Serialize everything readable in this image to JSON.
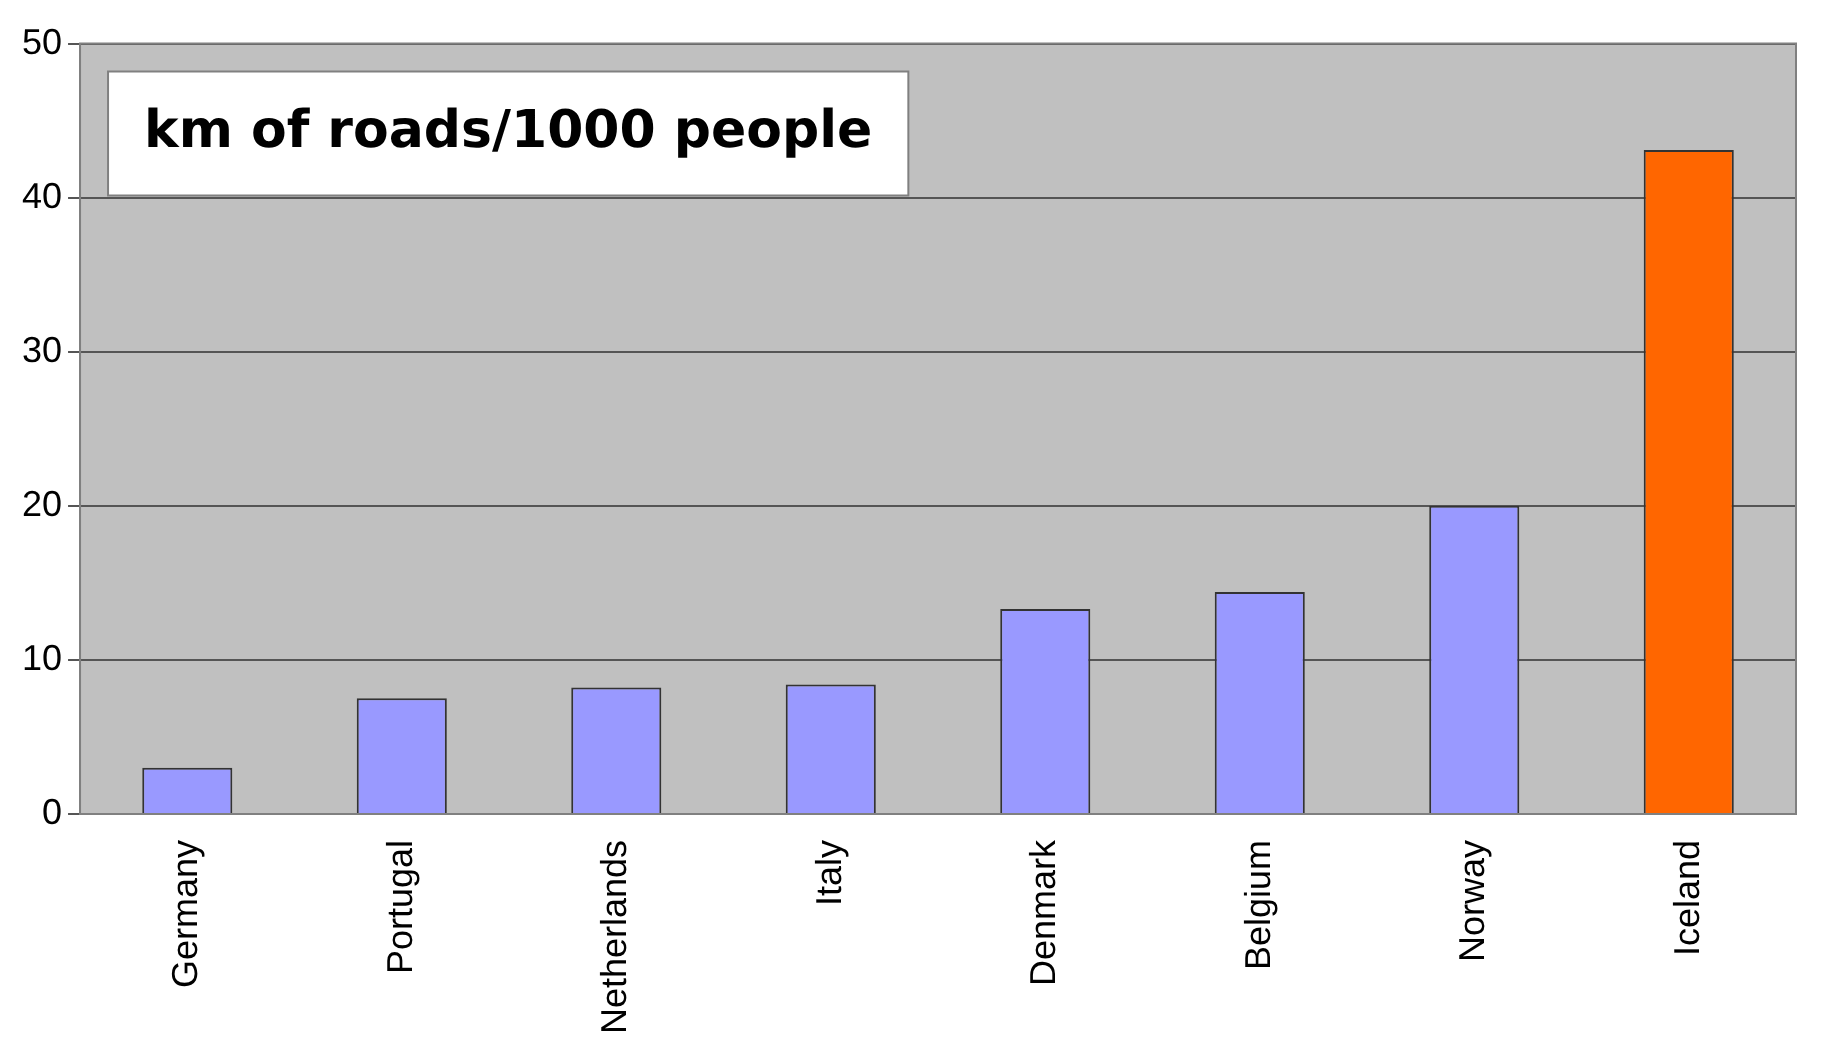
{
  "chart_data": {
    "type": "bar",
    "title": "km of roads/1000 people",
    "categories": [
      "Germany",
      "Portugal",
      "Netherlands",
      "Italy",
      "Denmark",
      "Belgium",
      "Norway",
      "Iceland"
    ],
    "values": [
      3.0,
      7.5,
      8.2,
      8.4,
      13.3,
      14.4,
      20.0,
      43.1
    ],
    "colors": [
      "#9999ff",
      "#9999ff",
      "#9999ff",
      "#9999ff",
      "#9999ff",
      "#9999ff",
      "#9999ff",
      "#ff6600"
    ],
    "ylim": [
      0,
      50
    ],
    "yticks": [
      0,
      10,
      20,
      30,
      40,
      50
    ],
    "grid": "y",
    "legend": false
  }
}
